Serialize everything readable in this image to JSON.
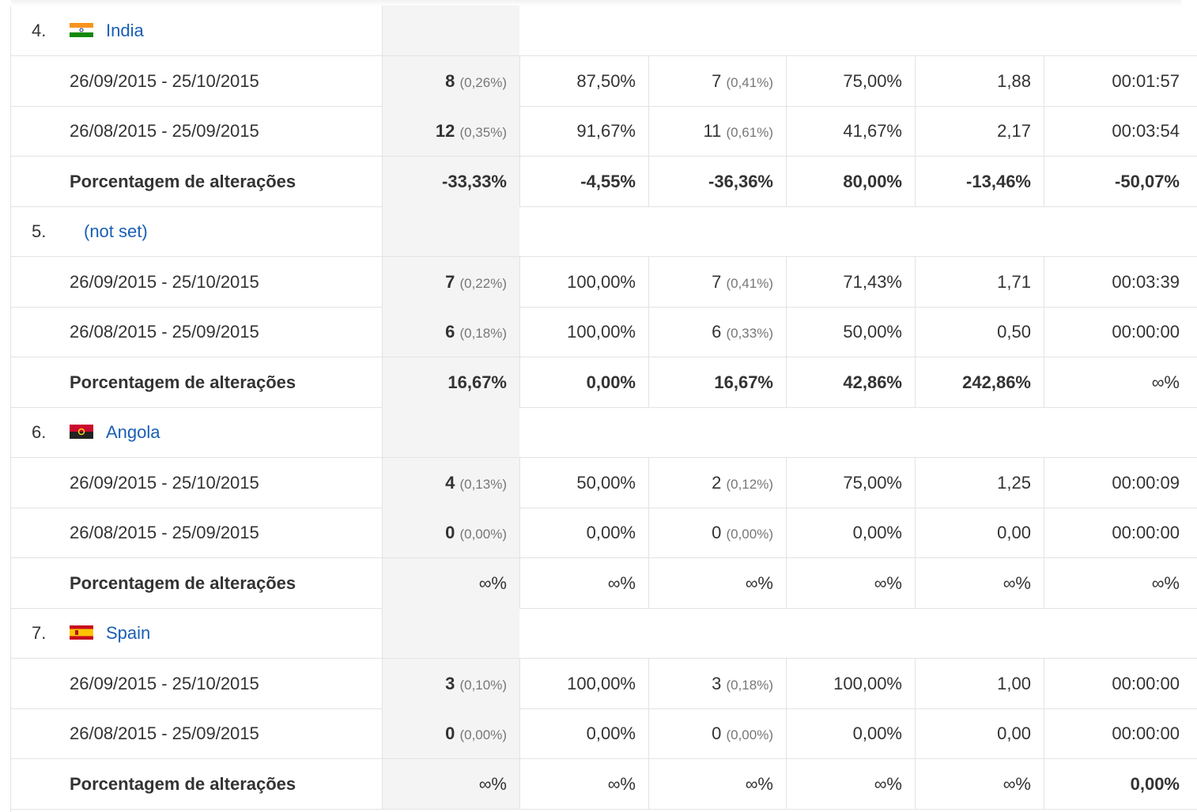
{
  "groups": [
    {
      "rank": "4.",
      "name": "India",
      "rows": [
        {
          "label": "26/09/2015 - 25/10/2015",
          "cells": [
            {
              "value": "8",
              "share": "(0,26%)"
            },
            "87,50%",
            {
              "value": "7",
              "share": "(0,41%)"
            },
            "75,00%",
            "1,88",
            "00:01:57"
          ]
        },
        {
          "label": "26/08/2015 - 25/09/2015",
          "cells": [
            {
              "value": "12",
              "share": "(0,35%)"
            },
            "91,67%",
            {
              "value": "11",
              "share": "(0,61%)"
            },
            "41,67%",
            "2,17",
            "00:03:54"
          ]
        },
        {
          "label": "Porcentagem de alterações",
          "cells": [
            "-33,33%",
            "-4,55%",
            "-36,36%",
            "80,00%",
            "-13,46%",
            "-50,07%"
          ]
        }
      ]
    },
    {
      "rank": "5.",
      "name": "(not set)",
      "rows": [
        {
          "label": "26/09/2015 - 25/10/2015",
          "cells": [
            {
              "value": "7",
              "share": "(0,22%)"
            },
            "100,00%",
            {
              "value": "7",
              "share": "(0,41%)"
            },
            "71,43%",
            "1,71",
            "00:03:39"
          ]
        },
        {
          "label": "26/08/2015 - 25/09/2015",
          "cells": [
            {
              "value": "6",
              "share": "(0,18%)"
            },
            "100,00%",
            {
              "value": "6",
              "share": "(0,33%)"
            },
            "50,00%",
            "0,50",
            "00:00:00"
          ]
        },
        {
          "label": "Porcentagem de alterações",
          "cells": [
            "16,67%",
            "0,00%",
            "16,67%",
            "42,86%",
            "242,86%",
            "∞%"
          ]
        }
      ]
    },
    {
      "rank": "6.",
      "name": "Angola",
      "rows": [
        {
          "label": "26/09/2015 - 25/10/2015",
          "cells": [
            {
              "value": "4",
              "share": "(0,13%)"
            },
            "50,00%",
            {
              "value": "2",
              "share": "(0,12%)"
            },
            "75,00%",
            "1,25",
            "00:00:09"
          ]
        },
        {
          "label": "26/08/2015 - 25/09/2015",
          "cells": [
            {
              "value": "0",
              "share": "(0,00%)"
            },
            "0,00%",
            {
              "value": "0",
              "share": "(0,00%)"
            },
            "0,00%",
            "0,00",
            "00:00:00"
          ]
        },
        {
          "label": "Porcentagem de alterações",
          "cells": [
            "∞%",
            "∞%",
            "∞%",
            "∞%",
            "∞%",
            "∞%"
          ]
        }
      ]
    },
    {
      "rank": "7.",
      "name": "Spain",
      "rows": [
        {
          "label": "26/09/2015 - 25/10/2015",
          "cells": [
            {
              "value": "3",
              "share": "(0,10%)"
            },
            "100,00%",
            {
              "value": "3",
              "share": "(0,18%)"
            },
            "100,00%",
            "1,00",
            "00:00:00"
          ]
        },
        {
          "label": "26/08/2015 - 25/09/2015",
          "cells": [
            {
              "value": "0",
              "share": "(0,00%)"
            },
            "0,00%",
            {
              "value": "0",
              "share": "(0,00%)"
            },
            "0,00%",
            "0,00",
            "00:00:00"
          ]
        },
        {
          "label": "Porcentagem de alterações",
          "cells": [
            "∞%",
            "∞%",
            "∞%",
            "∞%",
            "∞%",
            "0,00%"
          ]
        }
      ]
    }
  ]
}
